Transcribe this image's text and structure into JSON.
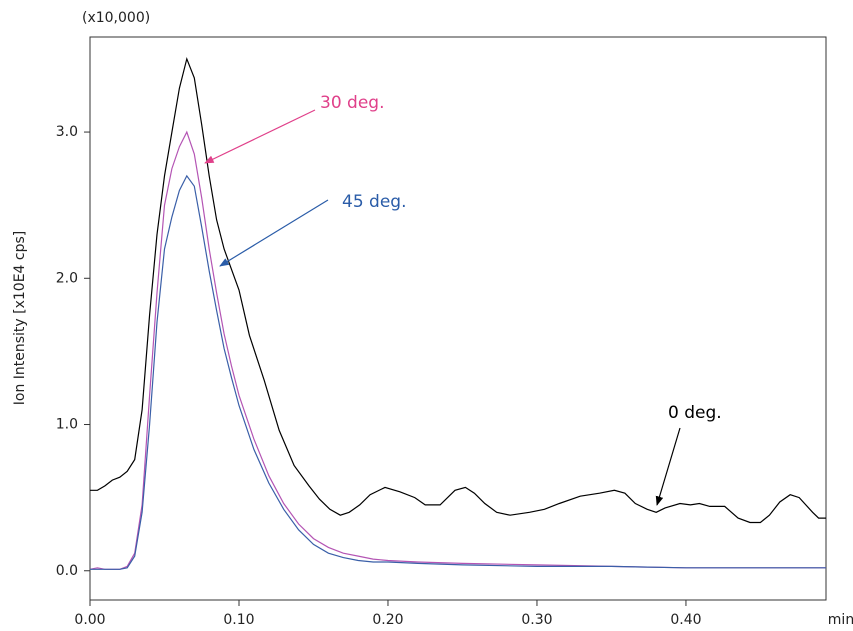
{
  "chart_data": {
    "type": "line",
    "y_label": "Ion Intensity [x10E4 cps]",
    "y_multiplier": "(x10,000)",
    "x_unit": "min",
    "xlim": [
      0,
      0.494
    ],
    "ylim": [
      -0.2,
      3.65
    ],
    "xticks": [
      {
        "value": 0,
        "label": "0.00"
      },
      {
        "value": 0.1,
        "label": "0.10"
      },
      {
        "value": 0.2,
        "label": "0.20"
      },
      {
        "value": 0.3,
        "label": "0.30"
      },
      {
        "value": 0.4,
        "label": "0.40"
      }
    ],
    "yticks": [
      {
        "value": 0,
        "label": "0.0"
      },
      {
        "value": 1,
        "label": "1.0"
      },
      {
        "value": 2,
        "label": "2.0"
      },
      {
        "value": 3,
        "label": "3.0"
      }
    ],
    "series": [
      {
        "name": "0 deg.",
        "color": "#000000",
        "x": [
          0,
          0.005,
          0.01,
          0.015,
          0.02,
          0.025,
          0.03,
          0.035,
          0.04,
          0.045,
          0.05,
          0.055,
          0.06,
          0.065,
          0.07,
          0.075,
          0.08,
          0.085,
          0.09,
          0.1,
          0.107,
          0.117,
          0.127,
          0.137,
          0.147,
          0.154,
          0.161,
          0.168,
          0.174,
          0.181,
          0.188,
          0.198,
          0.208,
          0.218,
          0.225,
          0.235,
          0.245,
          0.252,
          0.258,
          0.265,
          0.273,
          0.282,
          0.295,
          0.305,
          0.315,
          0.329,
          0.342,
          0.352,
          0.359,
          0.366,
          0.374,
          0.38,
          0.386,
          0.396,
          0.403,
          0.409,
          0.416,
          0.426,
          0.435,
          0.443,
          0.45,
          0.456,
          0.463,
          0.47,
          0.476,
          0.485,
          0.489,
          0.494
        ],
        "values": [
          0.55,
          0.55,
          0.58,
          0.62,
          0.64,
          0.68,
          0.76,
          1.1,
          1.75,
          2.3,
          2.7,
          3.0,
          3.3,
          3.5,
          3.37,
          3.05,
          2.7,
          2.4,
          2.2,
          1.92,
          1.61,
          1.3,
          0.96,
          0.72,
          0.58,
          0.49,
          0.42,
          0.38,
          0.4,
          0.45,
          0.52,
          0.57,
          0.54,
          0.5,
          0.45,
          0.45,
          0.55,
          0.57,
          0.53,
          0.46,
          0.4,
          0.38,
          0.4,
          0.42,
          0.46,
          0.51,
          0.53,
          0.55,
          0.53,
          0.46,
          0.42,
          0.4,
          0.43,
          0.46,
          0.45,
          0.46,
          0.44,
          0.44,
          0.36,
          0.33,
          0.33,
          0.38,
          0.47,
          0.52,
          0.5,
          0.4,
          0.36,
          0.36
        ]
      },
      {
        "name": "30 deg.",
        "color": "#b455b4",
        "x": [
          0,
          0.005,
          0.01,
          0.015,
          0.02,
          0.025,
          0.03,
          0.035,
          0.04,
          0.045,
          0.05,
          0.055,
          0.06,
          0.065,
          0.07,
          0.075,
          0.08,
          0.085,
          0.09,
          0.095,
          0.1,
          0.11,
          0.12,
          0.13,
          0.14,
          0.15,
          0.16,
          0.17,
          0.18,
          0.19,
          0.2,
          0.22,
          0.25,
          0.3,
          0.35,
          0.4,
          0.45,
          0.494
        ],
        "values": [
          0.01,
          0.02,
          0.01,
          0.01,
          0.01,
          0.03,
          0.12,
          0.45,
          1.2,
          1.9,
          2.5,
          2.75,
          2.9,
          3.0,
          2.85,
          2.55,
          2.2,
          1.9,
          1.62,
          1.4,
          1.2,
          0.9,
          0.65,
          0.46,
          0.32,
          0.22,
          0.16,
          0.12,
          0.1,
          0.08,
          0.07,
          0.06,
          0.05,
          0.04,
          0.03,
          0.02,
          0.02,
          0.02
        ]
      },
      {
        "name": "45 deg.",
        "color": "#3a5fa8",
        "x": [
          0,
          0.005,
          0.01,
          0.015,
          0.02,
          0.025,
          0.03,
          0.035,
          0.04,
          0.045,
          0.05,
          0.055,
          0.06,
          0.065,
          0.07,
          0.075,
          0.08,
          0.085,
          0.09,
          0.095,
          0.1,
          0.11,
          0.12,
          0.13,
          0.14,
          0.15,
          0.16,
          0.17,
          0.18,
          0.19,
          0.2,
          0.22,
          0.25,
          0.3,
          0.35,
          0.4,
          0.45,
          0.494
        ],
        "values": [
          0.01,
          0.01,
          0.01,
          0.01,
          0.01,
          0.02,
          0.1,
          0.4,
          1.0,
          1.7,
          2.2,
          2.42,
          2.6,
          2.7,
          2.63,
          2.35,
          2.05,
          1.78,
          1.52,
          1.32,
          1.13,
          0.83,
          0.6,
          0.42,
          0.28,
          0.18,
          0.12,
          0.09,
          0.07,
          0.06,
          0.06,
          0.05,
          0.04,
          0.03,
          0.03,
          0.02,
          0.02,
          0.02
        ]
      }
    ],
    "annotations": [
      {
        "text": "30 deg.",
        "color": "#e0408a"
      },
      {
        "text": "45 deg.",
        "color": "#2a5ca8"
      },
      {
        "text": "0 deg.",
        "color": "#000000"
      }
    ]
  }
}
